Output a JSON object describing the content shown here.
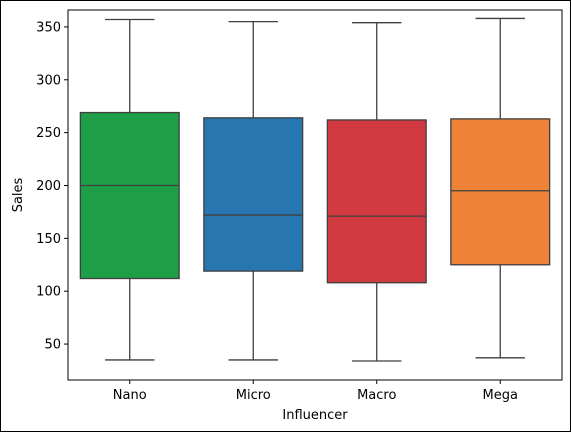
{
  "chart_data": {
    "type": "box",
    "xlabel": "Influencer",
    "ylabel": "Sales",
    "ylim": [
      16,
      366
    ],
    "yticks": [
      50,
      100,
      150,
      200,
      250,
      300,
      350
    ],
    "grid": false,
    "legend": "none",
    "categories": [
      "Nano",
      "Micro",
      "Macro",
      "Mega"
    ],
    "boxes": [
      {
        "category": "Nano",
        "min": 35,
        "q1": 112,
        "median": 200,
        "q3": 269,
        "max": 357,
        "color": "#1f9e48"
      },
      {
        "category": "Micro",
        "min": 35,
        "q1": 119,
        "median": 172,
        "q3": 264,
        "max": 355,
        "color": "#2876b0"
      },
      {
        "category": "Macro",
        "min": 34,
        "q1": 108,
        "median": 171,
        "q3": 262,
        "max": 354,
        "color": "#d03a40"
      },
      {
        "category": "Mega",
        "min": 37,
        "q1": 125,
        "median": 195,
        "q3": 263,
        "max": 358,
        "color": "#ee8237"
      }
    ]
  }
}
